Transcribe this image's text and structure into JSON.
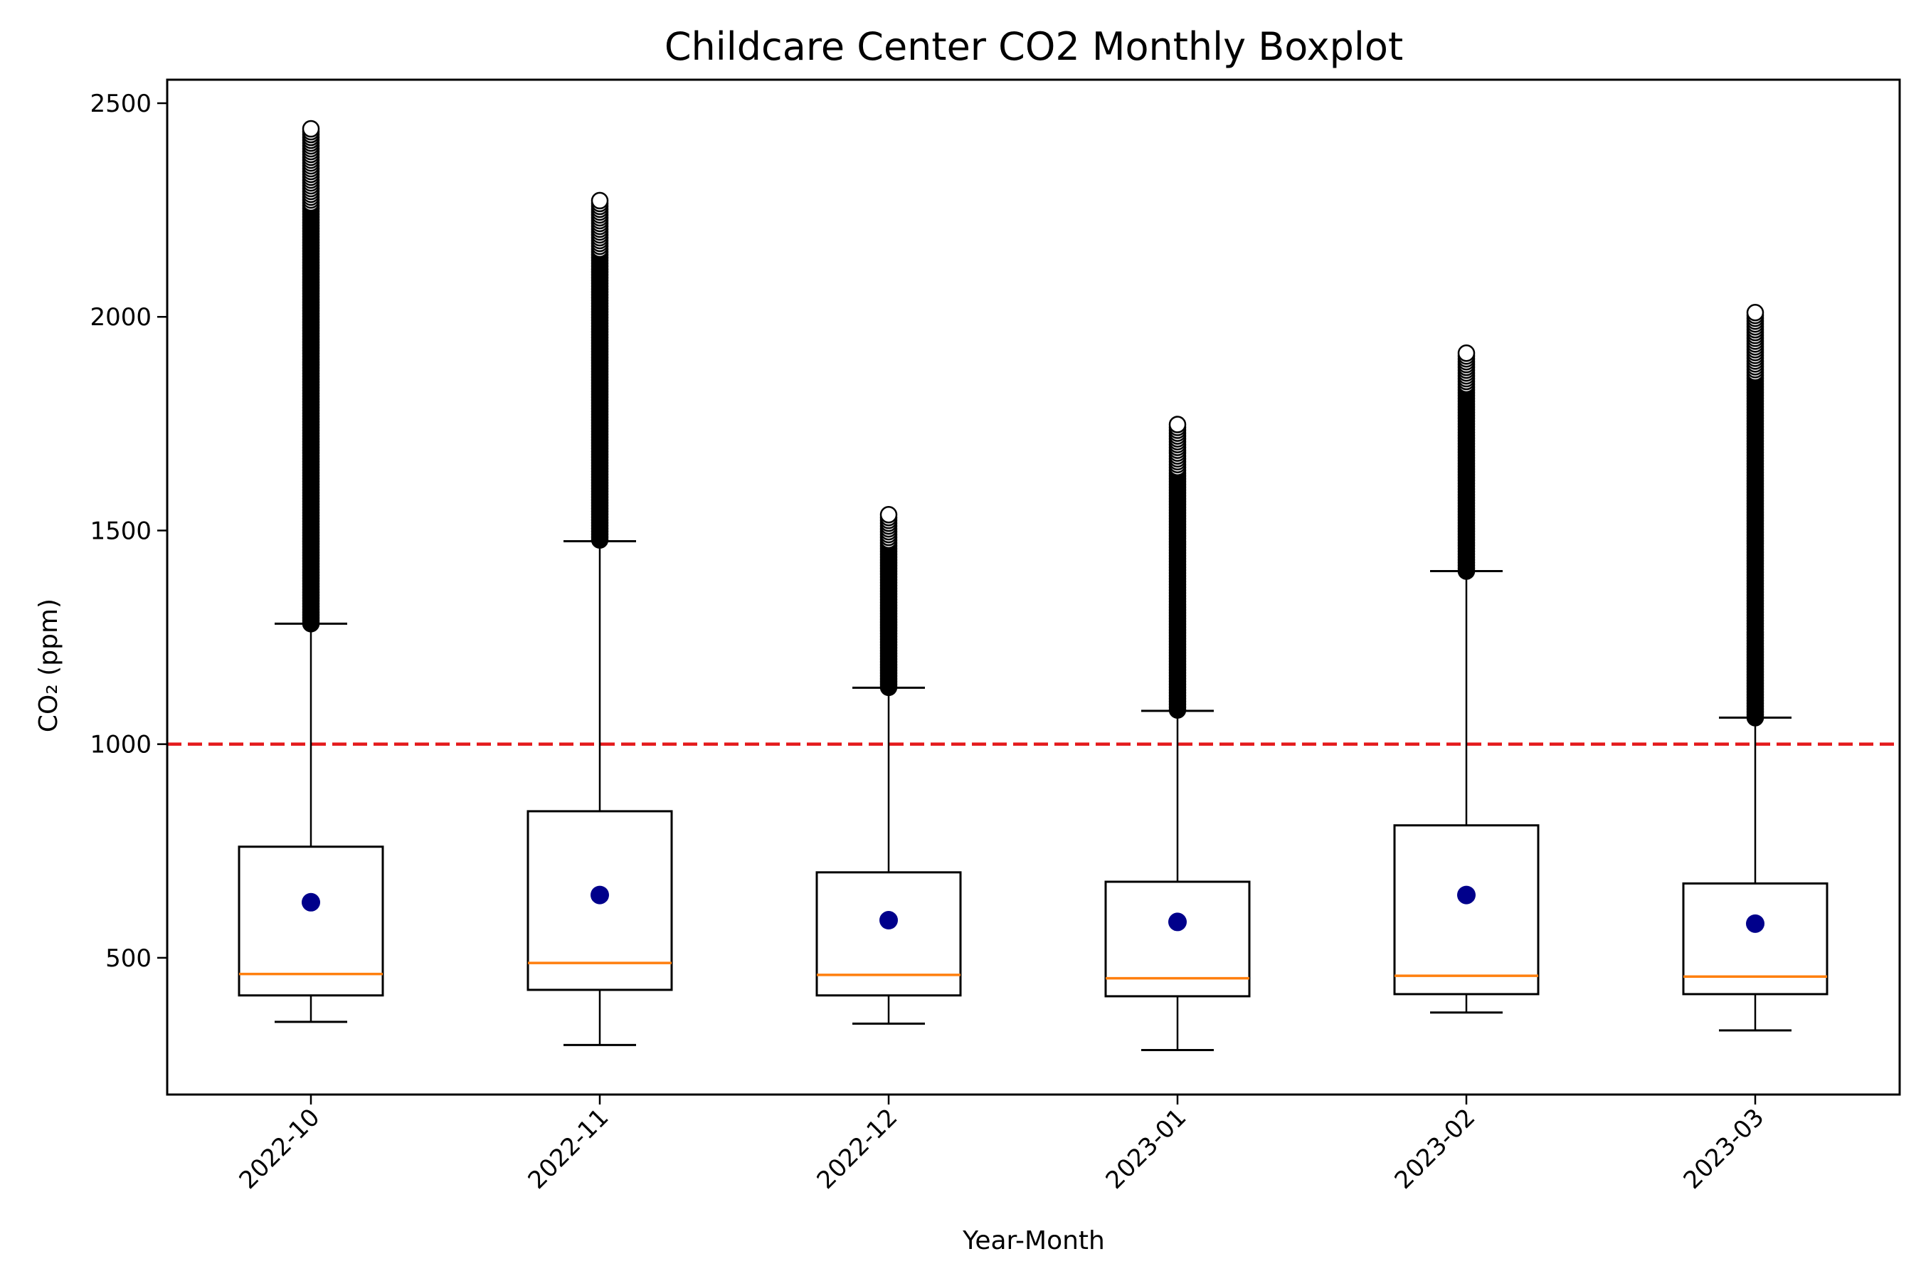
{
  "chart_data": {
    "type": "boxplot",
    "title": "Childcare Center CO2 Monthly Boxplot",
    "xlabel": "Year-Month",
    "ylabel": "CO₂ (ppm)",
    "categories": [
      "2022-10",
      "2022-11",
      "2022-12",
      "2023-01",
      "2023-02",
      "2023-03"
    ],
    "ylim": [
      180,
      2555
    ],
    "yticks": [
      500,
      1000,
      1500,
      2000,
      2500
    ],
    "threshold": {
      "value": 1000,
      "color": "#e41a1c",
      "style": "dashed"
    },
    "boxes": [
      {
        "category": "2022-10",
        "whisker_low": 350,
        "q1": 412,
        "median": 462,
        "q3": 760,
        "whisker_high": 1282,
        "mean": 630,
        "outlier_min": 1282,
        "outlier_max": 2440
      },
      {
        "category": "2022-11",
        "whisker_low": 296,
        "q1": 425,
        "median": 488,
        "q3": 843,
        "whisker_high": 1475,
        "mean": 647,
        "outlier_min": 1478,
        "outlier_max": 2272
      },
      {
        "category": "2022-12",
        "whisker_low": 346,
        "q1": 412,
        "median": 460,
        "q3": 700,
        "whisker_high": 1132,
        "mean": 588,
        "outlier_min": 1133,
        "outlier_max": 1537
      },
      {
        "category": "2023-01",
        "whisker_low": 284,
        "q1": 410,
        "median": 452,
        "q3": 678,
        "whisker_high": 1078,
        "mean": 584,
        "outlier_min": 1080,
        "outlier_max": 1748
      },
      {
        "category": "2023-02",
        "whisker_low": 372,
        "q1": 415,
        "median": 458,
        "q3": 810,
        "whisker_high": 1405,
        "mean": 647,
        "outlier_min": 1405,
        "outlier_max": 1915
      },
      {
        "category": "2023-03",
        "whisker_low": 330,
        "q1": 415,
        "median": 456,
        "q3": 674,
        "whisker_high": 1062,
        "mean": 580,
        "outlier_min": 1062,
        "outlier_max": 2010
      }
    ],
    "colors": {
      "box": "#000000",
      "median": "#ff7f0e",
      "mean": "#00008b",
      "outlier": "#000000"
    },
    "grid": false,
    "legend": "none"
  }
}
